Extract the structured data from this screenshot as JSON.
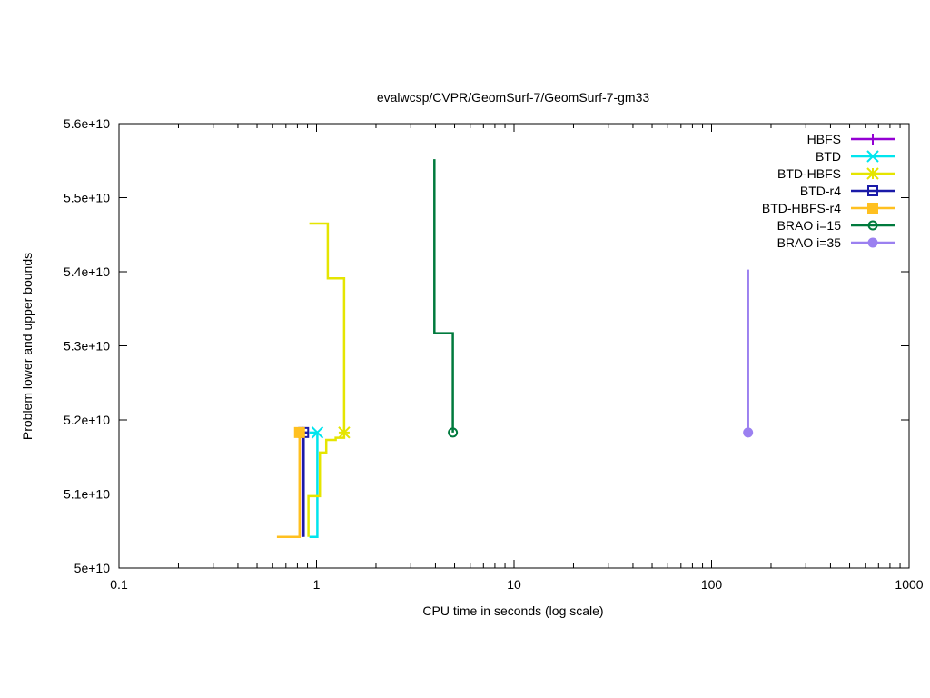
{
  "chart_data": {
    "type": "line",
    "title": "evalwcsp/CVPR/GeomSurf-7/GeomSurf-7-gm33",
    "xlabel": "CPU time in seconds (log scale)",
    "ylabel": "Problem lower and upper bounds",
    "xscale": "log",
    "xlim": [
      0.1,
      1000
    ],
    "ylim": [
      50000000000,
      56000000000
    ],
    "grid": false,
    "legend_position": "top-right",
    "xticks": [
      {
        "value": 0.1,
        "label": "0.1"
      },
      {
        "value": 1,
        "label": "1"
      },
      {
        "value": 10,
        "label": "10"
      },
      {
        "value": 100,
        "label": "100"
      },
      {
        "value": 1000,
        "label": "1000"
      }
    ],
    "yticks": [
      {
        "value": 50000000000,
        "label": "5e+10"
      },
      {
        "value": 51000000000,
        "label": "5.1e+10"
      },
      {
        "value": 52000000000,
        "label": "5.2e+10"
      },
      {
        "value": 53000000000,
        "label": "5.3e+10"
      },
      {
        "value": 54000000000,
        "label": "5.4e+10"
      },
      {
        "value": 55000000000,
        "label": "5.5e+10"
      },
      {
        "value": 56000000000,
        "label": "5.6e+10"
      }
    ],
    "series": [
      {
        "name": "HBFS",
        "color": "#9400d3",
        "marker": "plus",
        "lower": [
          [
            0.85,
            50420000000
          ],
          [
            0.85,
            51830000000
          ]
        ],
        "upper": [
          [
            0.8,
            51830000000
          ],
          [
            0.85,
            51830000000
          ]
        ],
        "final": [
          0.85,
          51830000000
        ]
      },
      {
        "name": "BTD",
        "color": "#00e5ee",
        "marker": "cross",
        "lower": [
          [
            0.92,
            50420000000
          ],
          [
            1.01,
            50420000000
          ],
          [
            1.01,
            51830000000
          ]
        ],
        "upper": [
          [
            0.92,
            51830000000
          ],
          [
            1.01,
            51830000000
          ]
        ],
        "final": [
          1.01,
          51830000000
        ]
      },
      {
        "name": "BTD-HBFS",
        "color": "#e5e500",
        "marker": "star",
        "lower": [
          [
            0.91,
            50420000000
          ],
          [
            0.91,
            50970000000
          ],
          [
            1.04,
            50970000000
          ],
          [
            1.04,
            51560000000
          ],
          [
            1.12,
            51560000000
          ],
          [
            1.12,
            51730000000
          ],
          [
            1.25,
            51730000000
          ],
          [
            1.25,
            51760000000
          ],
          [
            1.38,
            51760000000
          ],
          [
            1.38,
            51830000000
          ]
        ],
        "upper": [
          [
            0.92,
            54650000000
          ],
          [
            1.14,
            54650000000
          ],
          [
            1.14,
            53910000000
          ],
          [
            1.38,
            53910000000
          ],
          [
            1.38,
            51830000000
          ]
        ],
        "final": [
          1.38,
          51830000000
        ]
      },
      {
        "name": "BTD-r4",
        "color": "#1a1aa8",
        "marker": "square",
        "lower": [
          [
            0.86,
            50420000000
          ],
          [
            0.86,
            51830000000
          ]
        ],
        "upper": [
          [
            0.86,
            51830000000
          ],
          [
            0.9,
            51830000000
          ]
        ],
        "final": [
          0.86,
          51830000000
        ]
      },
      {
        "name": "BTD-HBFS-r4",
        "color": "#ffc020",
        "marker": "filled-square",
        "lower": [
          [
            0.63,
            50420000000
          ],
          [
            0.82,
            50420000000
          ],
          [
            0.82,
            51830000000
          ]
        ],
        "upper": [
          [
            0.82,
            51830000000
          ]
        ],
        "final": [
          0.82,
          51830000000
        ]
      },
      {
        "name": "BRAO i=15",
        "color": "#007a3d",
        "marker": "circle",
        "lower": [],
        "upper": [
          [
            3.95,
            55520000000
          ],
          [
            3.95,
            53170000000
          ],
          [
            4.9,
            53170000000
          ],
          [
            4.9,
            51830000000
          ]
        ],
        "final": [
          4.9,
          51830000000
        ]
      },
      {
        "name": "BRAO i=35",
        "color": "#9b80f0",
        "marker": "filled-circle",
        "lower": [],
        "upper": [
          [
            153,
            54030000000
          ],
          [
            153,
            51830000000
          ]
        ],
        "final": [
          153,
          51830000000
        ]
      }
    ]
  }
}
